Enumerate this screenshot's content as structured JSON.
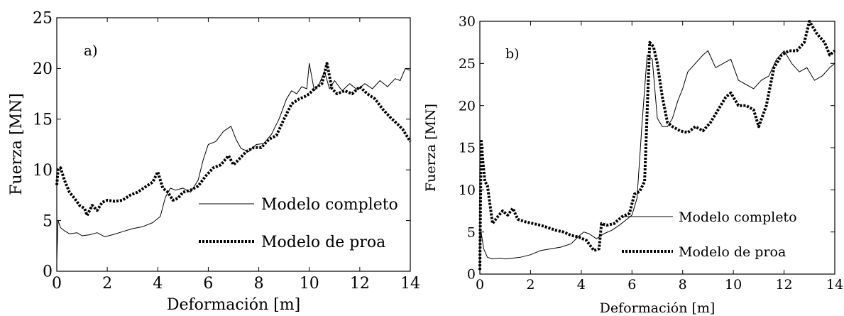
{
  "chart_data": [
    {
      "type": "line",
      "panel_label": "a)",
      "xlabel": "Deformación [m]",
      "ylabel": "Fuerza [MN]",
      "xlim": [
        0,
        14
      ],
      "ylim": [
        0,
        25
      ],
      "x_ticks": [
        0,
        2,
        4,
        6,
        8,
        10,
        12,
        14
      ],
      "y_ticks": [
        0,
        5,
        10,
        15,
        20,
        25
      ],
      "grid": false,
      "legend_position": "right",
      "series": [
        {
          "name": "Modelo completo",
          "style": "solid",
          "x": [
            0,
            0.05,
            0.15,
            0.3,
            0.5,
            0.8,
            1.0,
            1.3,
            1.6,
            1.9,
            2.2,
            2.6,
            3.0,
            3.4,
            3.8,
            4.1,
            4.3,
            4.5,
            4.7,
            5.0,
            5.3,
            5.6,
            5.8,
            6.0,
            6.3,
            6.6,
            6.9,
            7.1,
            7.3,
            7.6,
            7.9,
            8.2,
            8.5,
            8.8,
            9.1,
            9.3,
            9.5,
            9.7,
            9.9,
            10.0,
            10.2,
            10.4,
            10.6,
            10.8,
            11.0,
            11.3,
            11.6,
            11.9,
            12.2,
            12.5,
            12.8,
            13.1,
            13.4,
            13.6,
            13.8,
            14.0
          ],
          "y": [
            1.0,
            5.0,
            4.3,
            4.0,
            3.7,
            3.8,
            3.5,
            3.6,
            3.8,
            3.4,
            3.6,
            3.9,
            4.2,
            4.4,
            4.8,
            5.4,
            7.3,
            8.2,
            8.0,
            8.2,
            7.8,
            9.0,
            11.0,
            12.5,
            12.8,
            13.8,
            14.3,
            13.0,
            12.1,
            11.8,
            12.5,
            12.6,
            13.5,
            15.0,
            17.0,
            17.8,
            17.5,
            18.2,
            18.0,
            20.5,
            17.8,
            18.5,
            19.7,
            18.0,
            18.8,
            17.8,
            18.5,
            17.9,
            18.5,
            18.0,
            18.8,
            18.2,
            19.0,
            18.8,
            20.0,
            19.8
          ]
        },
        {
          "name": "Modelo de proa",
          "style": "dotted",
          "x": [
            0,
            0.05,
            0.15,
            0.3,
            0.5,
            0.7,
            0.9,
            1.1,
            1.2,
            1.4,
            1.6,
            1.8,
            2.0,
            2.3,
            2.6,
            2.9,
            3.2,
            3.5,
            3.8,
            4.0,
            4.2,
            4.4,
            4.6,
            4.8,
            5.0,
            5.3,
            5.6,
            5.9,
            6.2,
            6.5,
            6.8,
            7.0,
            7.2,
            7.5,
            7.8,
            8.1,
            8.4,
            8.7,
            9.0,
            9.3,
            9.6,
            9.8,
            10.0,
            10.2,
            10.5,
            10.7,
            10.9,
            11.1,
            11.4,
            11.7,
            12.0,
            12.3,
            12.6,
            12.9,
            13.2,
            13.5,
            13.7,
            13.9,
            14.0
          ],
          "y": [
            8.5,
            10.0,
            10.2,
            9.0,
            7.8,
            7.2,
            6.5,
            6.2,
            5.5,
            6.5,
            6.0,
            6.8,
            7.0,
            6.9,
            7.0,
            7.5,
            7.8,
            8.3,
            8.8,
            9.8,
            8.2,
            7.8,
            7.0,
            7.2,
            7.8,
            8.0,
            8.4,
            9.4,
            10.2,
            10.5,
            11.4,
            10.5,
            11.0,
            11.8,
            12.2,
            12.2,
            13.0,
            13.4,
            15.0,
            16.5,
            17.0,
            17.2,
            17.5,
            18.0,
            18.5,
            20.5,
            18.0,
            17.5,
            17.8,
            17.5,
            18.2,
            17.5,
            17.0,
            16.0,
            15.2,
            14.5,
            14.0,
            13.2,
            12.8
          ]
        }
      ]
    },
    {
      "type": "line",
      "panel_label": "b)",
      "xlabel": "Deformación [m]",
      "ylabel": "Fuerza [MN]",
      "xlim": [
        0,
        14
      ],
      "ylim": [
        0,
        30
      ],
      "x_ticks": [
        0,
        2,
        4,
        6,
        8,
        10,
        12,
        14
      ],
      "y_ticks": [
        0,
        5,
        10,
        15,
        20,
        25,
        30
      ],
      "grid": false,
      "legend_position": "right",
      "series": [
        {
          "name": "Modelo completo",
          "style": "solid",
          "x": [
            0,
            0.05,
            0.15,
            0.3,
            0.5,
            0.8,
            1.0,
            1.3,
            1.6,
            2.0,
            2.4,
            2.8,
            3.2,
            3.6,
            3.9,
            4.1,
            4.3,
            4.6,
            4.9,
            5.2,
            5.5,
            5.8,
            6.0,
            6.2,
            6.4,
            6.6,
            6.8,
            7.0,
            7.2,
            7.4,
            7.6,
            7.8,
            8.0,
            8.2,
            8.5,
            8.8,
            9.0,
            9.3,
            9.6,
            9.9,
            10.2,
            10.5,
            10.8,
            11.1,
            11.4,
            11.7,
            12.0,
            12.3,
            12.6,
            12.9,
            13.2,
            13.5,
            13.8,
            14.0
          ],
          "y": [
            3.5,
            5.0,
            3.0,
            2.0,
            1.8,
            1.9,
            1.8,
            1.9,
            2.0,
            2.3,
            2.8,
            3.0,
            3.2,
            3.6,
            4.5,
            5.0,
            4.8,
            4.2,
            4.8,
            5.2,
            5.8,
            6.5,
            7.0,
            9.0,
            18.0,
            26.0,
            25.5,
            18.5,
            17.5,
            17.5,
            18.5,
            20.5,
            22.0,
            24.0,
            25.0,
            26.0,
            26.5,
            24.5,
            25.0,
            25.5,
            23.0,
            22.5,
            22.0,
            23.0,
            23.5,
            25.5,
            26.5,
            25.0,
            24.0,
            24.5,
            23.0,
            23.5,
            24.5,
            25.0
          ]
        },
        {
          "name": "Modelo de proa",
          "style": "dotted",
          "x": [
            0,
            0.05,
            0.1,
            0.2,
            0.3,
            0.5,
            0.7,
            0.9,
            1.1,
            1.3,
            1.5,
            1.8,
            2.1,
            2.4,
            2.7,
            3.0,
            3.3,
            3.6,
            3.9,
            4.2,
            4.5,
            4.7,
            4.8,
            5.0,
            5.3,
            5.6,
            5.9,
            6.1,
            6.3,
            6.5,
            6.7,
            6.85,
            7.0,
            7.2,
            7.4,
            7.6,
            7.9,
            8.2,
            8.5,
            8.8,
            9.1,
            9.4,
            9.7,
            9.9,
            10.2,
            10.5,
            10.8,
            11.0,
            11.3,
            11.6,
            11.9,
            12.2,
            12.5,
            12.8,
            13.0,
            13.3,
            13.6,
            13.8,
            14.0
          ],
          "y": [
            0.5,
            16.0,
            14.0,
            11.0,
            10.5,
            6.0,
            6.8,
            7.5,
            7.0,
            7.8,
            6.5,
            6.2,
            6.0,
            5.8,
            5.5,
            5.2,
            5.0,
            4.6,
            4.4,
            4.0,
            2.8,
            3.0,
            6.0,
            5.8,
            6.0,
            6.8,
            7.2,
            9.5,
            9.8,
            11.0,
            27.5,
            27.0,
            25.0,
            21.0,
            18.0,
            17.5,
            17.0,
            16.8,
            17.5,
            17.0,
            18.0,
            19.5,
            21.0,
            21.5,
            20.0,
            20.0,
            19.5,
            17.5,
            20.0,
            24.5,
            26.0,
            26.5,
            26.5,
            27.5,
            30.0,
            28.5,
            27.5,
            26.0,
            26.5
          ]
        }
      ]
    }
  ]
}
